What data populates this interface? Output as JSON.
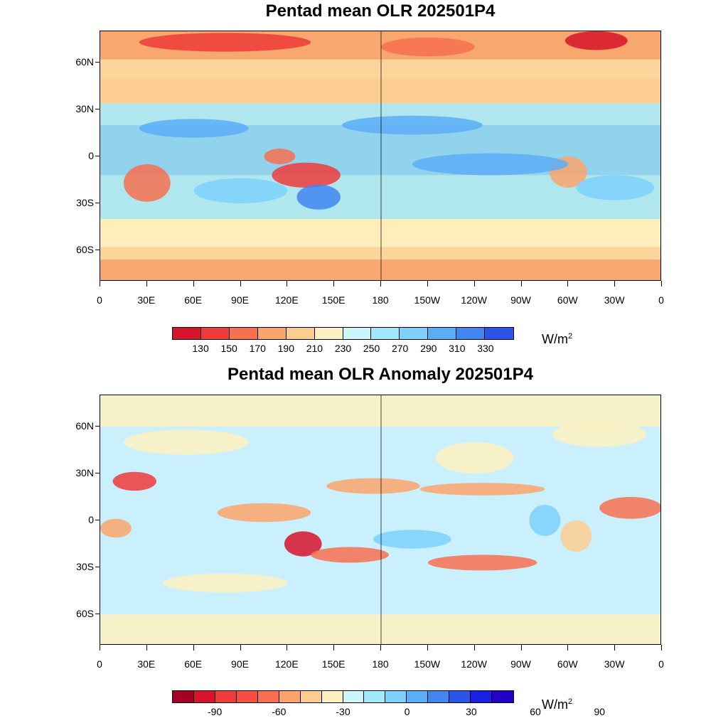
{
  "panels": [
    {
      "id": "olr",
      "title": "Pentad mean OLR 202501P4",
      "unit_base": "W/m",
      "unit_exp": "2",
      "colorbar": {
        "colors": [
          "#d7142b",
          "#ef3b3a",
          "#f7704f",
          "#fba46b",
          "#fdcd8f",
          "#fff1bf",
          "#c9f7fd",
          "#a2e9fc",
          "#7ed1fb",
          "#5aaef7",
          "#4186f1",
          "#2b55ea"
        ],
        "tick_labels": [
          "130",
          "150",
          "170",
          "190",
          "210",
          "230",
          "250",
          "270",
          "290",
          "310",
          "330"
        ]
      },
      "field": {
        "background": "#fbd59c",
        "zones": [
          {
            "lat_range": [
              -12,
              20
            ],
            "color": "#7ed1fb"
          },
          {
            "lat_range": [
              20,
              34
            ],
            "color": "#a2e9fc"
          },
          {
            "lat_range": [
              -40,
              -12
            ],
            "color": "#a2e9fc"
          },
          {
            "lat_range": [
              34,
              50
            ],
            "color": "#fdcd8f"
          },
          {
            "lat_range": [
              50,
              62
            ],
            "color": "#fbd59c"
          },
          {
            "lat_range": [
              62,
              80
            ],
            "color": "#f7a067"
          },
          {
            "lat_range": [
              -58,
              -40
            ],
            "color": "#fff1bf"
          },
          {
            "lat_range": [
              -80,
              -66
            ],
            "color": "#f7a067"
          }
        ],
        "blobs": [
          {
            "lon": 80,
            "lat": 73,
            "rx": 55,
            "ry": 6,
            "color": "#ef3b3a"
          },
          {
            "lon": 318,
            "lat": 74,
            "rx": 20,
            "ry": 6,
            "color": "#d7142b"
          },
          {
            "lon": 210,
            "lat": 70,
            "rx": 30,
            "ry": 6,
            "color": "#f7704f"
          },
          {
            "lon": 30,
            "lat": -17,
            "rx": 15,
            "ry": 12,
            "color": "#f7704f"
          },
          {
            "lon": 132,
            "lat": -12,
            "rx": 22,
            "ry": 8,
            "color": "#ef3b3a"
          },
          {
            "lon": 115,
            "lat": 0,
            "rx": 10,
            "ry": 5,
            "color": "#f7704f"
          },
          {
            "lon": 300,
            "lat": -10,
            "rx": 12,
            "ry": 10,
            "color": "#fba46b"
          },
          {
            "lon": 140,
            "lat": -26,
            "rx": 14,
            "ry": 8,
            "color": "#4186f1"
          },
          {
            "lon": 60,
            "lat": 18,
            "rx": 35,
            "ry": 6,
            "color": "#5aaef7"
          },
          {
            "lon": 200,
            "lat": 20,
            "rx": 45,
            "ry": 6,
            "color": "#5aaef7"
          },
          {
            "lon": 250,
            "lat": -5,
            "rx": 50,
            "ry": 7,
            "color": "#5aaef7"
          },
          {
            "lon": 90,
            "lat": -22,
            "rx": 30,
            "ry": 8,
            "color": "#7ed1fb"
          },
          {
            "lon": 330,
            "lat": -20,
            "rx": 25,
            "ry": 8,
            "color": "#7ed1fb"
          }
        ]
      }
    },
    {
      "id": "anomaly",
      "title": "Pentad mean OLR Anomaly 202501P4",
      "unit_base": "W/m",
      "unit_exp": "2",
      "colorbar": {
        "colors": [
          "#a50026",
          "#d7142b",
          "#ef3b3a",
          "#f64d42",
          "#f7704f",
          "#fba46b",
          "#fdcd8f",
          "#fff1bf",
          "#c9f7fd",
          "#a2e9fc",
          "#7ed1fb",
          "#5aaef7",
          "#4186f1",
          "#2b55ea",
          "#1a20e0",
          "#2400c8"
        ],
        "tick_labels": [
          "-90",
          "-60",
          "-30",
          "0",
          "30",
          "60",
          "90"
        ]
      },
      "field": {
        "background": "#c9f0fc",
        "zones": [
          {
            "lat_range": [
              -80,
              -60
            ],
            "color": "#fff1bf"
          },
          {
            "lat_range": [
              60,
              80
            ],
            "color": "#fff1bf"
          }
        ],
        "blobs": [
          {
            "lon": 22,
            "lat": 25,
            "rx": 14,
            "ry": 6,
            "color": "#ef3b3a"
          },
          {
            "lon": 130,
            "lat": -15,
            "rx": 12,
            "ry": 8,
            "color": "#d7142b"
          },
          {
            "lon": 160,
            "lat": -22,
            "rx": 25,
            "ry": 5,
            "color": "#f7704f"
          },
          {
            "lon": 245,
            "lat": -27,
            "rx": 35,
            "ry": 5,
            "color": "#f7704f"
          },
          {
            "lon": 175,
            "lat": 22,
            "rx": 30,
            "ry": 5,
            "color": "#fba46b"
          },
          {
            "lon": 245,
            "lat": 20,
            "rx": 40,
            "ry": 4,
            "color": "#fba46b"
          },
          {
            "lon": 340,
            "lat": 8,
            "rx": 20,
            "ry": 7,
            "color": "#f7704f"
          },
          {
            "lon": 105,
            "lat": 5,
            "rx": 30,
            "ry": 6,
            "color": "#fba46b"
          },
          {
            "lon": 10,
            "lat": -5,
            "rx": 10,
            "ry": 6,
            "color": "#fba46b"
          },
          {
            "lon": 305,
            "lat": -10,
            "rx": 10,
            "ry": 10,
            "color": "#fdcd8f"
          },
          {
            "lon": 200,
            "lat": -12,
            "rx": 25,
            "ry": 6,
            "color": "#7ed1fb"
          },
          {
            "lon": 285,
            "lat": 0,
            "rx": 10,
            "ry": 10,
            "color": "#7ed1fb"
          },
          {
            "lon": 240,
            "lat": 40,
            "rx": 25,
            "ry": 10,
            "color": "#fff1bf"
          },
          {
            "lon": 55,
            "lat": 50,
            "rx": 40,
            "ry": 8,
            "color": "#fff1bf"
          },
          {
            "lon": 320,
            "lat": 55,
            "rx": 30,
            "ry": 8,
            "color": "#fff1bf"
          },
          {
            "lon": 80,
            "lat": -40,
            "rx": 40,
            "ry": 6,
            "color": "#fff1bf"
          }
        ]
      }
    }
  ],
  "axes": {
    "lat_labels": [
      "60N",
      "30N",
      "0",
      "30S",
      "60S"
    ],
    "lat_values": [
      60,
      30,
      0,
      -30,
      -60
    ],
    "lon_labels": [
      "0",
      "30E",
      "60E",
      "90E",
      "120E",
      "150E",
      "180",
      "150W",
      "120W",
      "90W",
      "60W",
      "30W",
      "0"
    ],
    "lat_range": [
      -80,
      80
    ],
    "lon_range": [
      0,
      360
    ]
  }
}
